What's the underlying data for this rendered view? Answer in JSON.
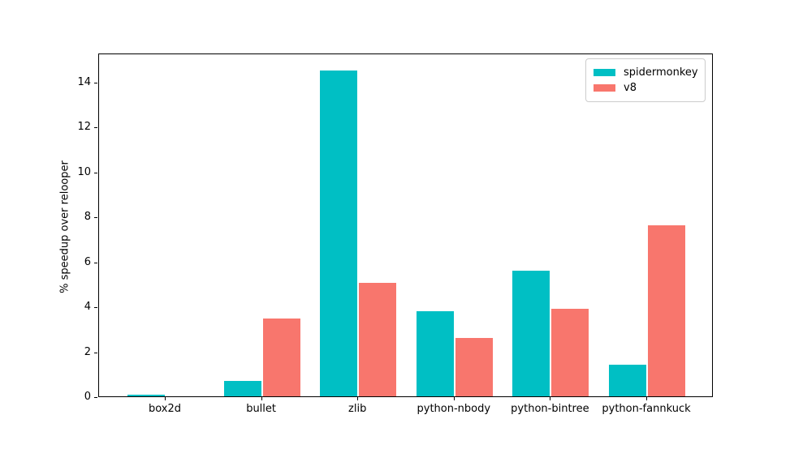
{
  "figure": {
    "background": "#ffffff",
    "text_color": "#000000",
    "frame_color": "#000000",
    "legend_border_color": "#cccccc"
  },
  "chart_data": {
    "type": "bar",
    "title": "",
    "xlabel": "",
    "ylabel": "% speedup over relooper",
    "categories": [
      "box2d",
      "bullet",
      "zlib",
      "python-nbody",
      "python-bintree",
      "python-fannkuck"
    ],
    "series": [
      {
        "name": "spidermonkey",
        "color": "#00BFC4",
        "values": [
          0.08,
          0.7,
          14.5,
          3.8,
          5.6,
          1.4
        ]
      },
      {
        "name": "v8",
        "color": "#F8766D",
        "values": [
          0.0,
          3.45,
          5.05,
          2.6,
          3.9,
          7.6
        ]
      }
    ],
    "yticks": [
      0,
      2,
      4,
      6,
      8,
      10,
      12,
      14
    ],
    "ylim": [
      0,
      15.3
    ],
    "grid": false,
    "legend_position": "upper right"
  }
}
